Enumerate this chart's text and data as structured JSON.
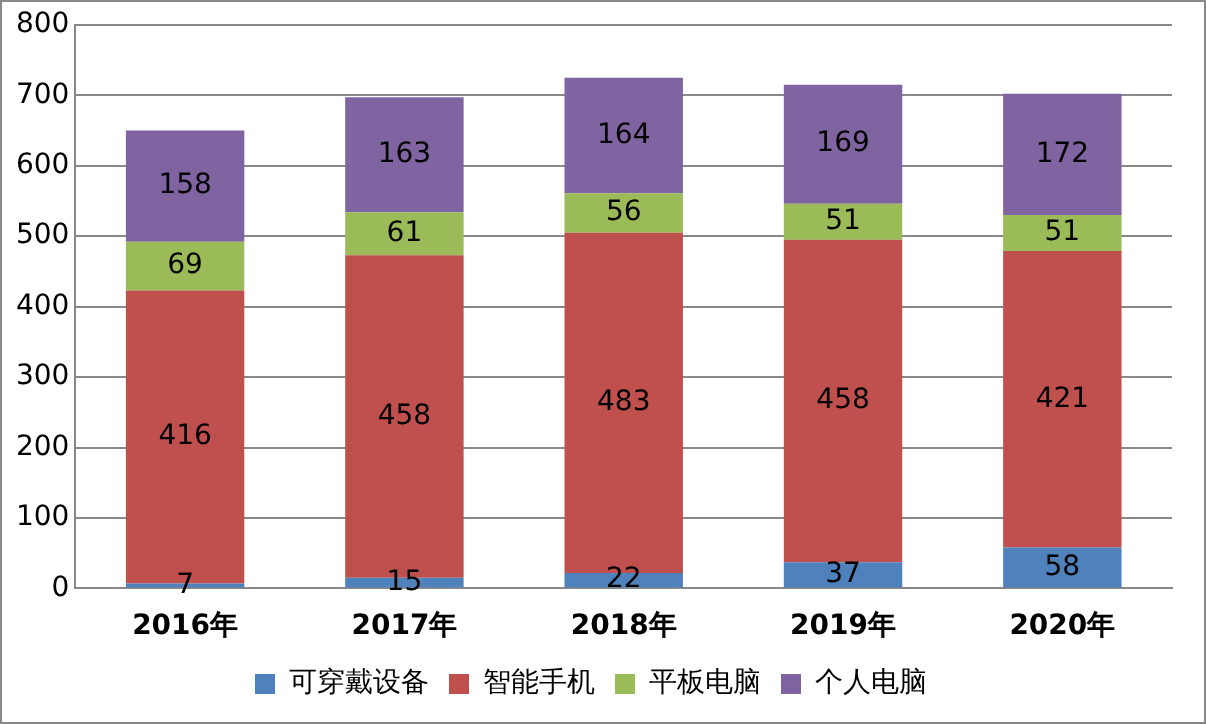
{
  "chart_data": {
    "type": "bar",
    "stacked": true,
    "categories": [
      "2016年",
      "2017年",
      "2018年",
      "2019年",
      "2020年"
    ],
    "series": [
      {
        "name": "可穿戴设备",
        "color": "#4f81bd",
        "values": [
          7,
          15,
          22,
          37,
          58
        ]
      },
      {
        "name": "智能手机",
        "color": "#c0504d",
        "values": [
          416,
          458,
          483,
          458,
          421
        ]
      },
      {
        "name": "平板电脑",
        "color": "#9bbb59",
        "values": [
          69,
          61,
          56,
          51,
          51
        ]
      },
      {
        "name": "个人电脑",
        "color": "#8064a2",
        "values": [
          158,
          163,
          164,
          169,
          172
        ]
      }
    ],
    "ylim": [
      0,
      800
    ],
    "yticks": [
      0,
      100,
      200,
      300,
      400,
      500,
      600,
      700,
      800
    ],
    "grid": "y",
    "legend": "bottom",
    "data_labels": true
  }
}
